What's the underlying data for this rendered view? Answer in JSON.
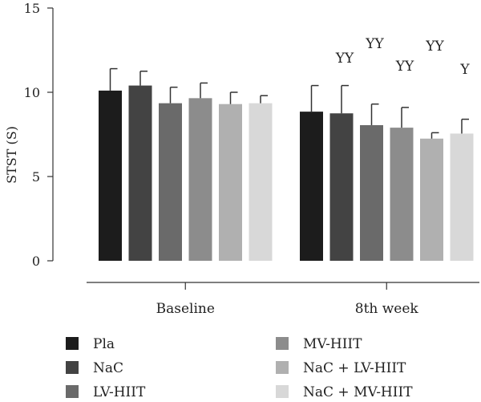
{
  "chart_data": {
    "type": "bar",
    "title": "",
    "xlabel": "",
    "ylabel": "STST (S)",
    "ylim": [
      0,
      15
    ],
    "yticks": [
      0,
      5,
      10,
      15
    ],
    "grid": false,
    "legend_position": "bottom",
    "categories": [
      "Baseline",
      "8th week"
    ],
    "series": [
      {
        "name": "Pla",
        "color": "#1c1c1c",
        "values": [
          10.1,
          8.85
        ],
        "errors": [
          1.3,
          1.55
        ],
        "annotations": [
          "",
          ""
        ]
      },
      {
        "name": "NaC",
        "color": "#434343",
        "values": [
          10.4,
          8.75
        ],
        "errors": [
          0.85,
          1.65
        ],
        "annotations": [
          "",
          "YY"
        ]
      },
      {
        "name": "LV-HIIT",
        "color": "#6a6a6a",
        "values": [
          9.35,
          8.05
        ],
        "errors": [
          0.95,
          1.25
        ],
        "annotations": [
          "",
          "YY"
        ]
      },
      {
        "name": "MV-HIIT",
        "color": "#8c8c8c",
        "values": [
          9.65,
          7.9
        ],
        "errors": [
          0.9,
          1.2
        ],
        "annotations": [
          "",
          "YY"
        ]
      },
      {
        "name": "NaC + LV-HIIT",
        "color": "#b0b0b0",
        "values": [
          9.3,
          7.25
        ],
        "errors": [
          0.7,
          0.35
        ],
        "annotations": [
          "",
          "YY"
        ]
      },
      {
        "name": "NaC + MV-HIIT",
        "color": "#d8d8d8",
        "values": [
          9.35,
          7.55
        ],
        "errors": [
          0.45,
          0.85
        ],
        "annotations": [
          "",
          "Y"
        ]
      }
    ]
  }
}
